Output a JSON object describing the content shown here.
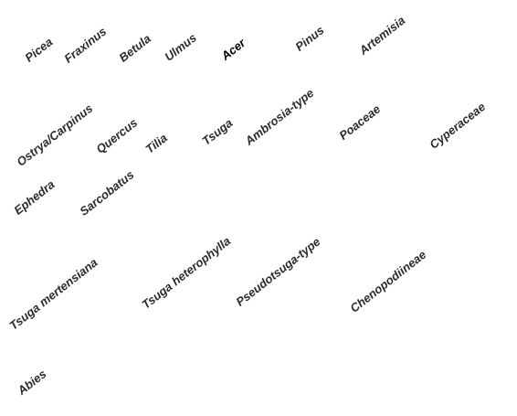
{
  "taxa": {
    "picea": "Picea",
    "fraxinus": "Fraxinus",
    "betula": "Betula",
    "ulmus": "Ulmus",
    "acer": "Acer",
    "pinus": "Pinus",
    "artemisia": "Artemisia",
    "ostrya_carpinus": "Ostrya/Carpinus",
    "quercus": "Quercus",
    "tilia": "Tilia",
    "tsuga": "Tsuga",
    "ambrosia_type": "Ambrosia-type",
    "poaceae": "Poaceae",
    "cyperaceae": "Cyperaceae",
    "ephedra": "Ephedra",
    "sarcobatus": "Sarcobatus",
    "tsuga_mertensiana": "Tsuga mertensiana",
    "tsuga_heterophylla": "Tsuga heterophylla",
    "pseudotsuga_type": "Pseudotsuga-type",
    "chenopodiineae": "Chenopodiineae",
    "abies": "Abies"
  }
}
